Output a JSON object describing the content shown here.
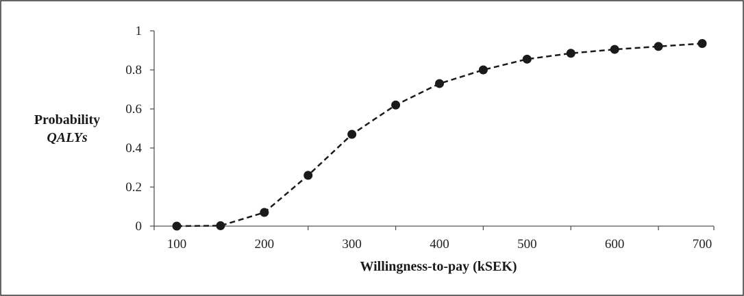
{
  "chart_data": {
    "type": "line",
    "title": "",
    "xlabel": "Willingness-to-pay (kSEK)",
    "ylabel": "Probability",
    "ylabel_sub": "QALYs",
    "xlim": [
      100,
      700
    ],
    "ylim": [
      0,
      1
    ],
    "x_ticks": [
      100,
      200,
      300,
      400,
      500,
      600,
      700
    ],
    "y_ticks": [
      0,
      0.2,
      0.4,
      0.6,
      0.8,
      1
    ],
    "y_tick_labels": [
      "0",
      "0.2",
      "0.4",
      "0.6",
      "0.8",
      "1"
    ],
    "grid": false,
    "legend": "none",
    "line_style": "dashed",
    "marker": "filled-circle",
    "color": "#1a1a1a",
    "series": [
      {
        "x": [
          100,
          150,
          200,
          250,
          300,
          350,
          400,
          450,
          500,
          550,
          600,
          650,
          700
        ],
        "values": [
          0,
          0.002,
          0.07,
          0.26,
          0.47,
          0.62,
          0.73,
          0.8,
          0.855,
          0.885,
          0.905,
          0.92,
          0.935
        ]
      }
    ]
  }
}
